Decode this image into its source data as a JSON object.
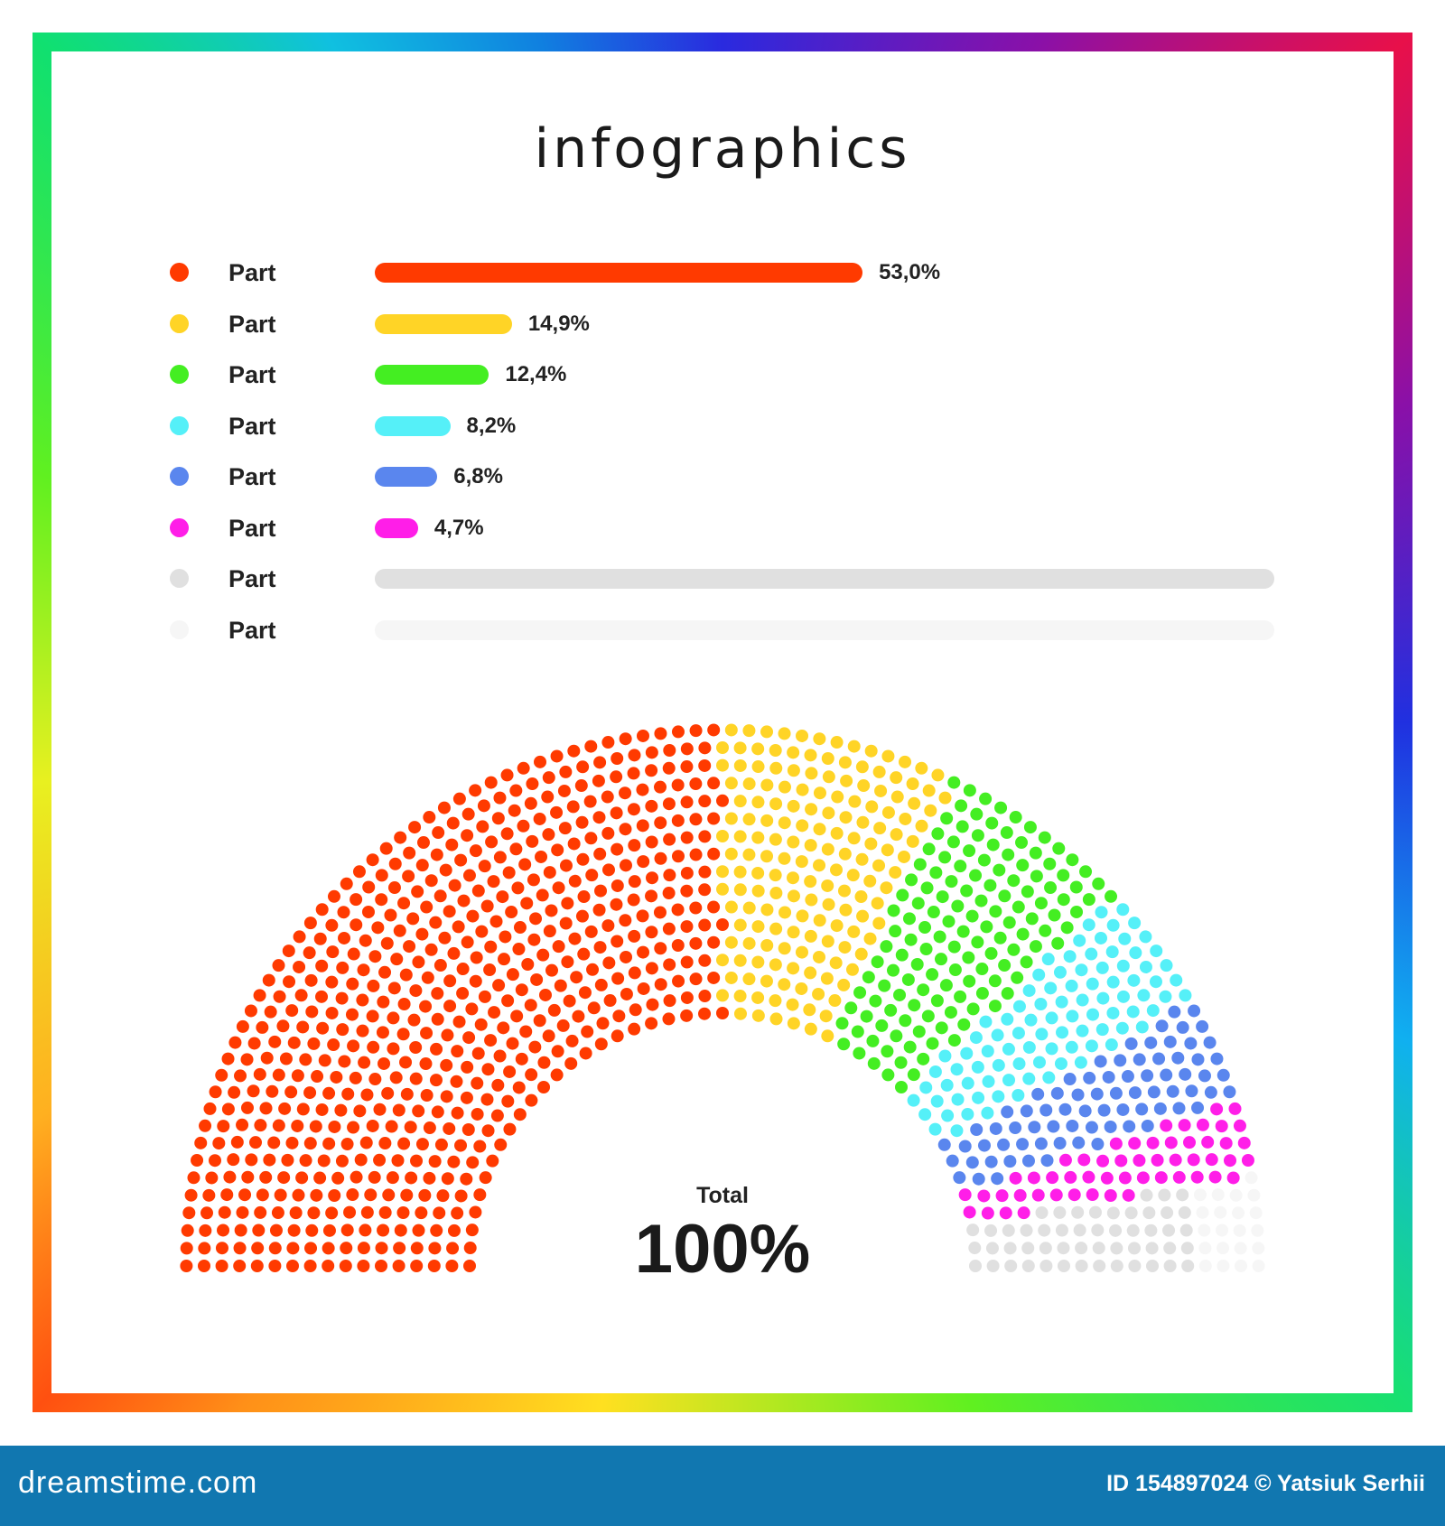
{
  "title": "infographics",
  "chart_data": {
    "type": "bar",
    "title": "infographics",
    "categories": [
      "Part",
      "Part",
      "Part",
      "Part",
      "Part",
      "Part",
      "Part",
      "Part"
    ],
    "values": [
      53.0,
      14.9,
      12.4,
      8.2,
      6.8,
      4.7,
      null,
      null
    ],
    "value_labels": [
      "53,0%",
      "14,9%",
      "12,4%",
      "8,2%",
      "6,8%",
      "4,7%",
      "",
      ""
    ],
    "colors": [
      "#ff3a00",
      "#ffd426",
      "#44ee22",
      "#55f0f8",
      "#5a86ee",
      "#ff1ee8",
      "#e0e0e0",
      "#f6f6f6"
    ],
    "secondary_chart": {
      "type": "semicircle-dot (parliament)",
      "values": [
        53.0,
        14.9,
        12.4,
        8.2,
        6.8,
        4.7
      ]
    },
    "total_label": "Total",
    "total_value": "100%"
  },
  "footer": {
    "brand": "dreamstime.com",
    "credit": "ID 154897024 © Yatsiuk Serhii",
    "color": "#1177b0"
  }
}
